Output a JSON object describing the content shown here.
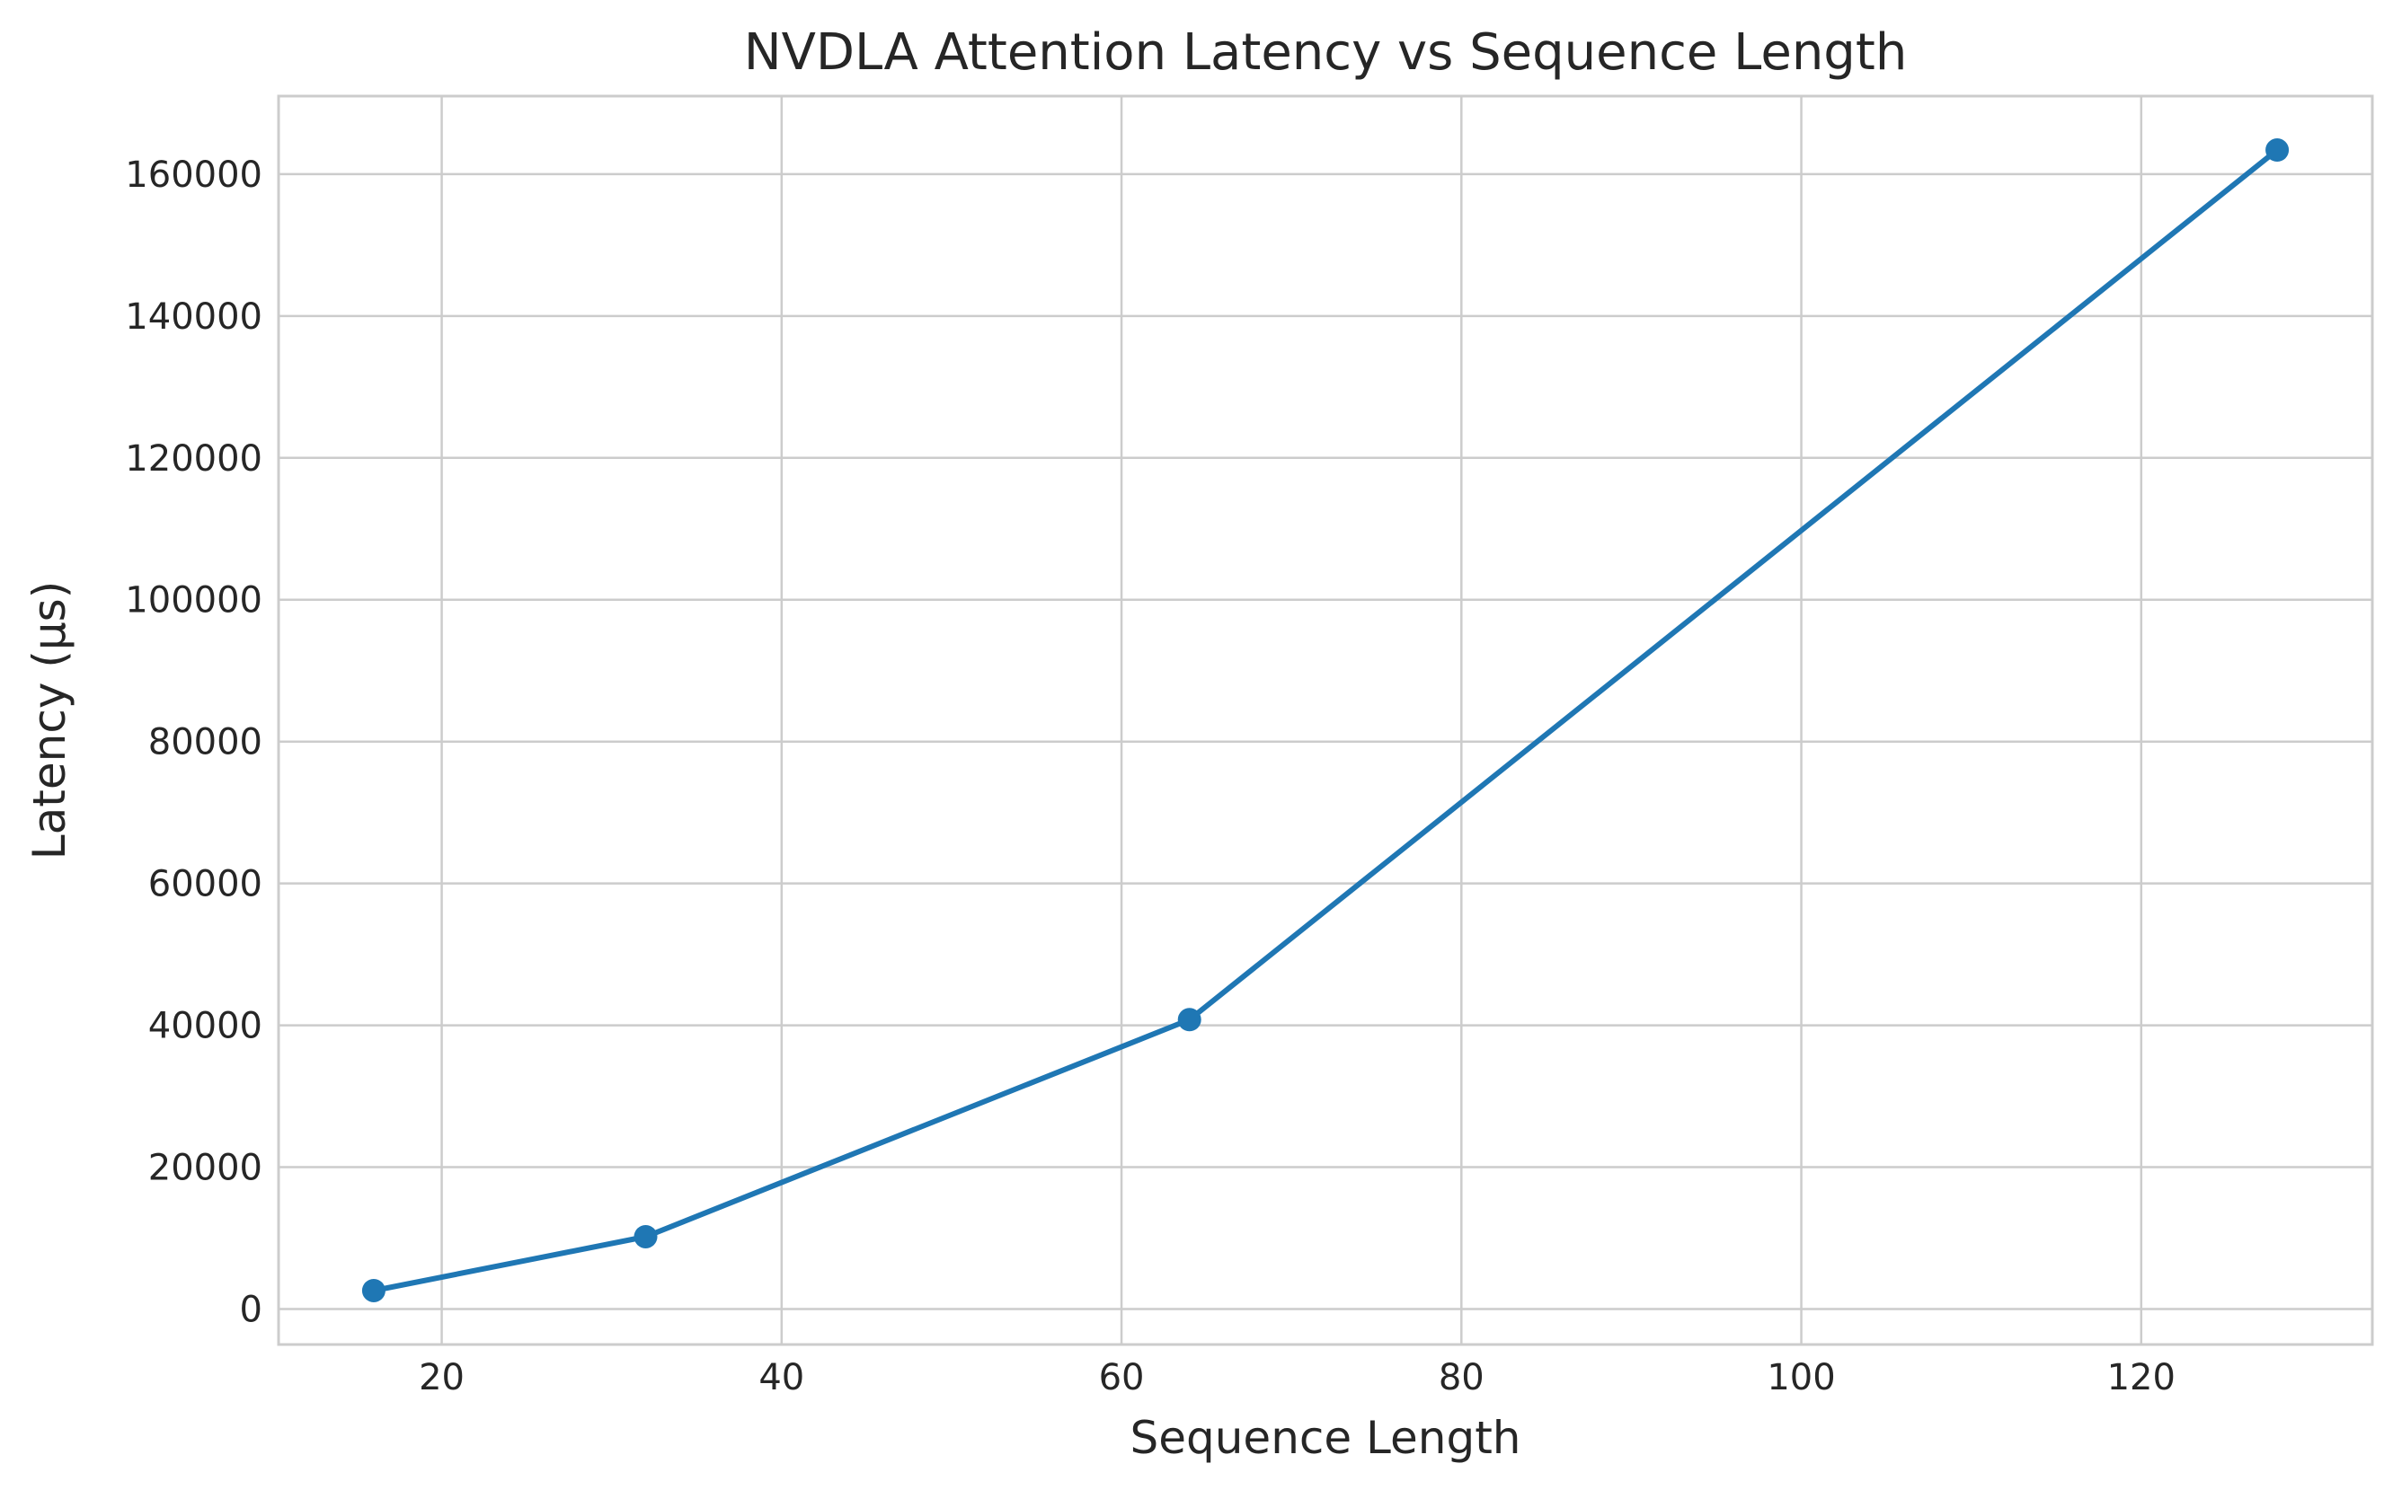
{
  "chart_data": {
    "type": "line",
    "title": "NVDLA Attention Latency vs Sequence Length",
    "xlabel": "Sequence Length",
    "ylabel": "Latency (µs)",
    "xlim": [
      10.4,
      133.6
    ],
    "ylim": [
      -5000,
      171000
    ],
    "xticks": [
      20,
      40,
      60,
      80,
      100,
      120
    ],
    "yticks": [
      0,
      20000,
      40000,
      60000,
      80000,
      100000,
      120000,
      140000,
      160000
    ],
    "grid": true,
    "legend": "none",
    "series": [
      {
        "color": "#1f77b4",
        "marker": "circle",
        "x": [
          16,
          32,
          64,
          128
        ],
        "y": [
          2600,
          10200,
          40800,
          163400
        ]
      }
    ]
  }
}
